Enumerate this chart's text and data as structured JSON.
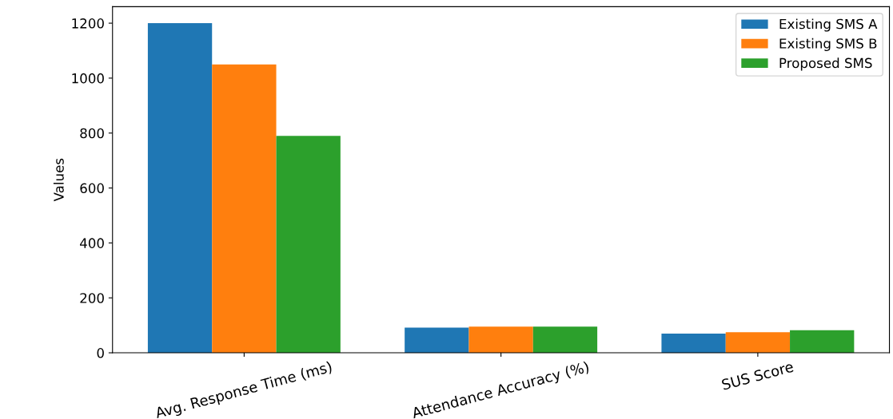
{
  "chart_data": {
    "type": "bar",
    "ylabel": "Values",
    "categories": [
      "Avg. Response Time (ms)",
      "Attendance Accuracy (%)",
      "SUS Score"
    ],
    "series": [
      {
        "name": "Existing SMS A",
        "color": "#1f77b4",
        "values": [
          1200,
          92,
          70
        ]
      },
      {
        "name": "Existing SMS B",
        "color": "#ff7f0e",
        "values": [
          1050,
          95,
          75
        ]
      },
      {
        "name": "Proposed SMS",
        "color": "#2ca02c",
        "values": [
          790,
          95,
          82
        ]
      }
    ],
    "ylim": [
      0,
      1260
    ],
    "yticks": [
      0,
      200,
      400,
      600,
      800,
      1000,
      1200
    ],
    "legend": "top right",
    "grid": false
  }
}
